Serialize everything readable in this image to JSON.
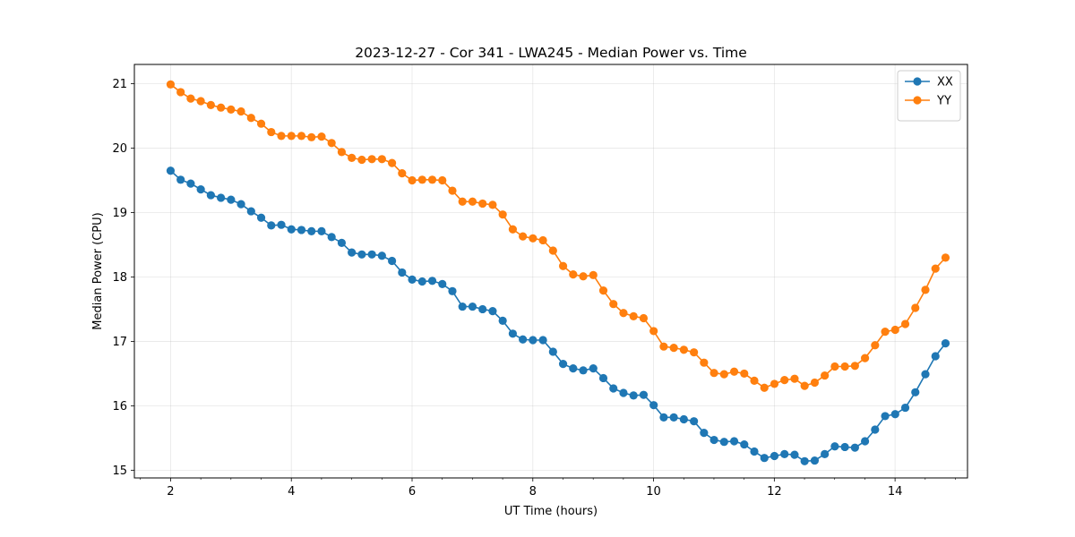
{
  "chart_data": {
    "type": "line",
    "title": "2023-12-27 - Cor 341 - LWA245 - Median Power vs. Time",
    "xlabel": "UT Time (hours)",
    "ylabel": "Median Power (CPU)",
    "xlim": [
      1.4,
      15.2
    ],
    "ylim": [
      14.88,
      21.3
    ],
    "xticks": [
      2,
      4,
      6,
      8,
      10,
      12,
      14
    ],
    "xtick_labels": [
      "2",
      "4",
      "6",
      "8",
      "10",
      "12",
      "14"
    ],
    "yticks": [
      15,
      16,
      17,
      18,
      19,
      20,
      21
    ],
    "ytick_labels": [
      "15",
      "16",
      "17",
      "18",
      "19",
      "20",
      "21"
    ],
    "x_minor_step": 0.5,
    "grid": true,
    "legend_position": "top-right",
    "x_start": 2.0,
    "x_step": 0.1667,
    "series": [
      {
        "name": "XX",
        "color": "#1f77b4",
        "values": [
          19.65,
          19.51,
          19.45,
          19.36,
          19.27,
          19.23,
          19.2,
          19.13,
          19.02,
          18.92,
          18.8,
          18.81,
          18.74,
          18.73,
          18.71,
          18.71,
          18.62,
          18.53,
          18.38,
          18.35,
          18.35,
          18.33,
          18.25,
          18.07,
          17.96,
          17.93,
          17.94,
          17.89,
          17.78,
          17.54,
          17.54,
          17.5,
          17.47,
          17.32,
          17.12,
          17.03,
          17.02,
          17.02,
          16.84,
          16.65,
          16.58,
          16.55,
          16.58,
          16.43,
          16.27,
          16.2,
          16.16,
          16.17,
          16.01,
          15.82,
          15.82,
          15.79,
          15.76,
          15.58,
          15.47,
          15.44,
          15.45,
          15.4,
          15.29,
          15.19,
          15.22,
          15.25,
          15.24,
          15.14,
          15.15,
          15.25,
          15.37,
          15.36,
          15.35,
          15.45,
          15.63,
          15.84,
          15.87,
          15.97,
          16.21,
          16.49,
          16.77,
          16.97
        ]
      },
      {
        "name": "YY",
        "color": "#ff7f0e",
        "values": [
          20.99,
          20.87,
          20.77,
          20.73,
          20.67,
          20.63,
          20.6,
          20.57,
          20.47,
          20.38,
          20.25,
          20.19,
          20.19,
          20.19,
          20.17,
          20.18,
          20.08,
          19.94,
          19.85,
          19.82,
          19.83,
          19.83,
          19.77,
          19.61,
          19.5,
          19.51,
          19.51,
          19.5,
          19.34,
          19.17,
          19.17,
          19.14,
          19.12,
          18.97,
          18.74,
          18.63,
          18.6,
          18.57,
          18.41,
          18.17,
          18.04,
          18.01,
          18.03,
          17.79,
          17.58,
          17.44,
          17.39,
          17.36,
          17.16,
          16.92,
          16.9,
          16.87,
          16.83,
          16.67,
          16.51,
          16.49,
          16.53,
          16.5,
          16.39,
          16.28,
          16.34,
          16.4,
          16.42,
          16.31,
          16.36,
          16.47,
          16.61,
          16.61,
          16.62,
          16.74,
          16.94,
          17.15,
          17.18,
          17.27,
          17.52,
          17.8,
          18.13,
          18.3
        ]
      }
    ]
  }
}
